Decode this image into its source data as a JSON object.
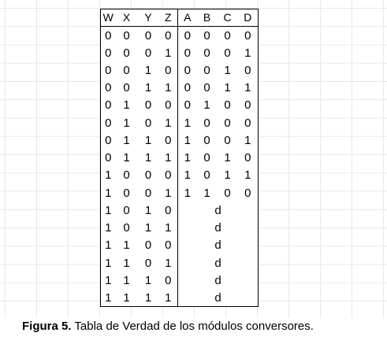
{
  "headers": [
    "W",
    "X",
    "Y",
    "Z",
    "A",
    "B",
    "C",
    "D"
  ],
  "rows": [
    {
      "in": [
        "0",
        "0",
        "0",
        "0"
      ],
      "out": [
        "0",
        "0",
        "0",
        "0"
      ]
    },
    {
      "in": [
        "0",
        "0",
        "0",
        "1"
      ],
      "out": [
        "0",
        "0",
        "0",
        "1"
      ]
    },
    {
      "in": [
        "0",
        "0",
        "1",
        "0"
      ],
      "out": [
        "0",
        "0",
        "1",
        "0"
      ]
    },
    {
      "in": [
        "0",
        "0",
        "1",
        "1"
      ],
      "out": [
        "0",
        "0",
        "1",
        "1"
      ]
    },
    {
      "in": [
        "0",
        "1",
        "0",
        "0"
      ],
      "out": [
        "0",
        "1",
        "0",
        "0"
      ]
    },
    {
      "in": [
        "0",
        "1",
        "0",
        "1"
      ],
      "out": [
        "1",
        "0",
        "0",
        "0"
      ]
    },
    {
      "in": [
        "0",
        "1",
        "1",
        "0"
      ],
      "out": [
        "1",
        "0",
        "0",
        "1"
      ]
    },
    {
      "in": [
        "0",
        "1",
        "1",
        "1"
      ],
      "out": [
        "1",
        "0",
        "1",
        "0"
      ]
    },
    {
      "in": [
        "1",
        "0",
        "0",
        "0"
      ],
      "out": [
        "1",
        "0",
        "1",
        "1"
      ]
    },
    {
      "in": [
        "1",
        "0",
        "0",
        "1"
      ],
      "out": [
        "1",
        "1",
        "0",
        "0"
      ]
    },
    {
      "in": [
        "1",
        "0",
        "1",
        "0"
      ],
      "dont_care": "d"
    },
    {
      "in": [
        "1",
        "0",
        "1",
        "1"
      ],
      "dont_care": "d"
    },
    {
      "in": [
        "1",
        "1",
        "0",
        "0"
      ],
      "dont_care": "d"
    },
    {
      "in": [
        "1",
        "1",
        "0",
        "1"
      ],
      "dont_care": "d"
    },
    {
      "in": [
        "1",
        "1",
        "1",
        "0"
      ],
      "dont_care": "d"
    },
    {
      "in": [
        "1",
        "1",
        "1",
        "1"
      ],
      "dont_care": "d"
    }
  ],
  "caption": {
    "label": "Figura 5.",
    "text": " Tabla de Verdad de los módulos conversores."
  }
}
